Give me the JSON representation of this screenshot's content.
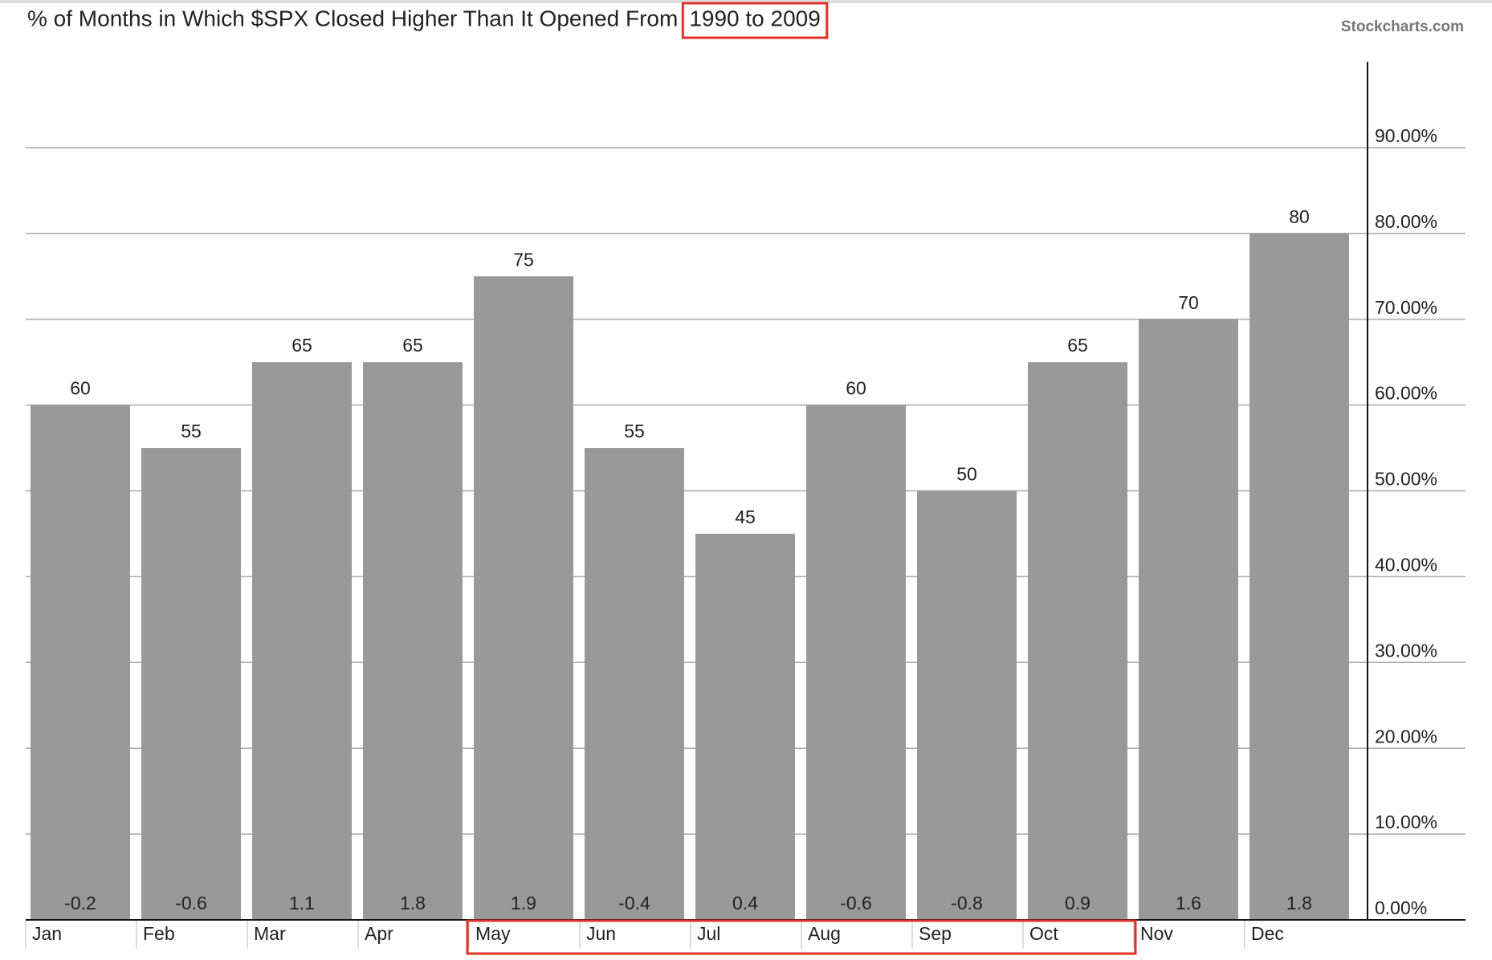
{
  "chart_data": {
    "type": "bar",
    "title": "% of Months in Which $SPX Closed Higher Than It Opened From",
    "title_highlight": "1990 to 2009",
    "watermark": "Stockcharts.com",
    "categories": [
      "Jan",
      "Feb",
      "Mar",
      "Apr",
      "May",
      "Jun",
      "Jul",
      "Aug",
      "Sep",
      "Oct",
      "Nov",
      "Dec"
    ],
    "values": [
      60,
      55,
      65,
      65,
      75,
      55,
      45,
      60,
      50,
      65,
      70,
      80
    ],
    "bottom_labels": [
      -0.2,
      -0.6,
      1.1,
      1.8,
      1.9,
      -0.4,
      0.4,
      -0.6,
      -0.8,
      0.9,
      1.6,
      1.8
    ],
    "color": "#999999",
    "ylim": [
      0,
      100
    ],
    "yticks": [
      {
        "value": 0,
        "label": "0.00%"
      },
      {
        "value": 10,
        "label": "10.00%"
      },
      {
        "value": 20,
        "label": "20.00%"
      },
      {
        "value": 30,
        "label": "30.00%"
      },
      {
        "value": 40,
        "label": "40.00%"
      },
      {
        "value": 50,
        "label": "50.00%"
      },
      {
        "value": 60,
        "label": "60.00%"
      },
      {
        "value": 70,
        "label": "70.00%"
      },
      {
        "value": 80,
        "label": "80.00%"
      },
      {
        "value": 90,
        "label": "90.00%"
      }
    ],
    "grid": true
  }
}
